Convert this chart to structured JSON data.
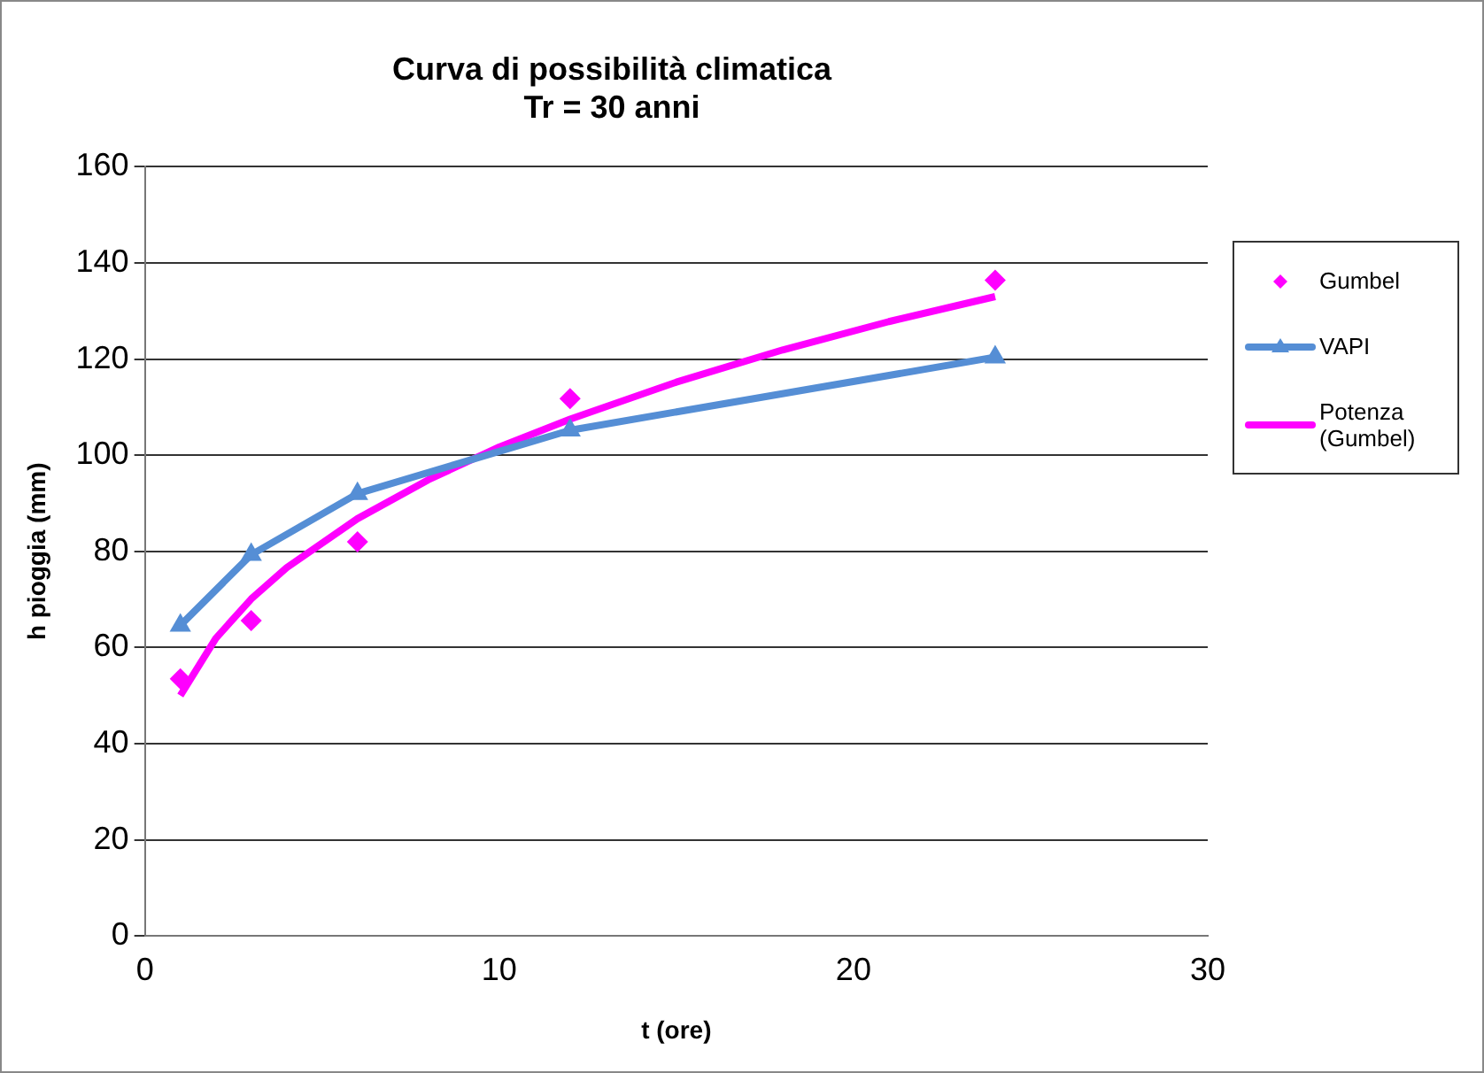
{
  "chart_data": {
    "type": "line",
    "title": "Curva di possibilità climatica\nTr = 30 anni",
    "xlabel": "t (ore)",
    "ylabel": "h pioggia (mm)",
    "xlim": [
      0,
      30
    ],
    "xticks": [
      0,
      10,
      20,
      30
    ],
    "ylim": [
      0,
      160
    ],
    "yticks": [
      0,
      20,
      40,
      60,
      80,
      100,
      120,
      140,
      160
    ],
    "grid": "y",
    "legend": "right",
    "series": [
      {
        "name": "Gumbel",
        "type": "scatter",
        "marker": "diamond",
        "color": "#ff00ff",
        "x": [
          1,
          3,
          6,
          12,
          24
        ],
        "values": [
          53.5,
          65.6,
          82,
          111.8,
          136.4
        ]
      },
      {
        "name": "VAPI",
        "type": "line",
        "marker": "triangle",
        "color": "#558ed5",
        "x": [
          1,
          3,
          6,
          12,
          24
        ],
        "values": [
          64.6,
          79.3,
          92,
          105.2,
          120.4
        ]
      },
      {
        "name": "Potenza (Gumbel)",
        "type": "line",
        "marker": "none",
        "color": "#ff00ff",
        "x": [
          1,
          2,
          3,
          4,
          6,
          8,
          10,
          12,
          15,
          18,
          21,
          24
        ],
        "values": [
          50,
          61.9,
          70.1,
          76.6,
          86.8,
          94.9,
          101.7,
          107.5,
          115.2,
          121.9,
          127.8,
          133
        ]
      }
    ]
  }
}
